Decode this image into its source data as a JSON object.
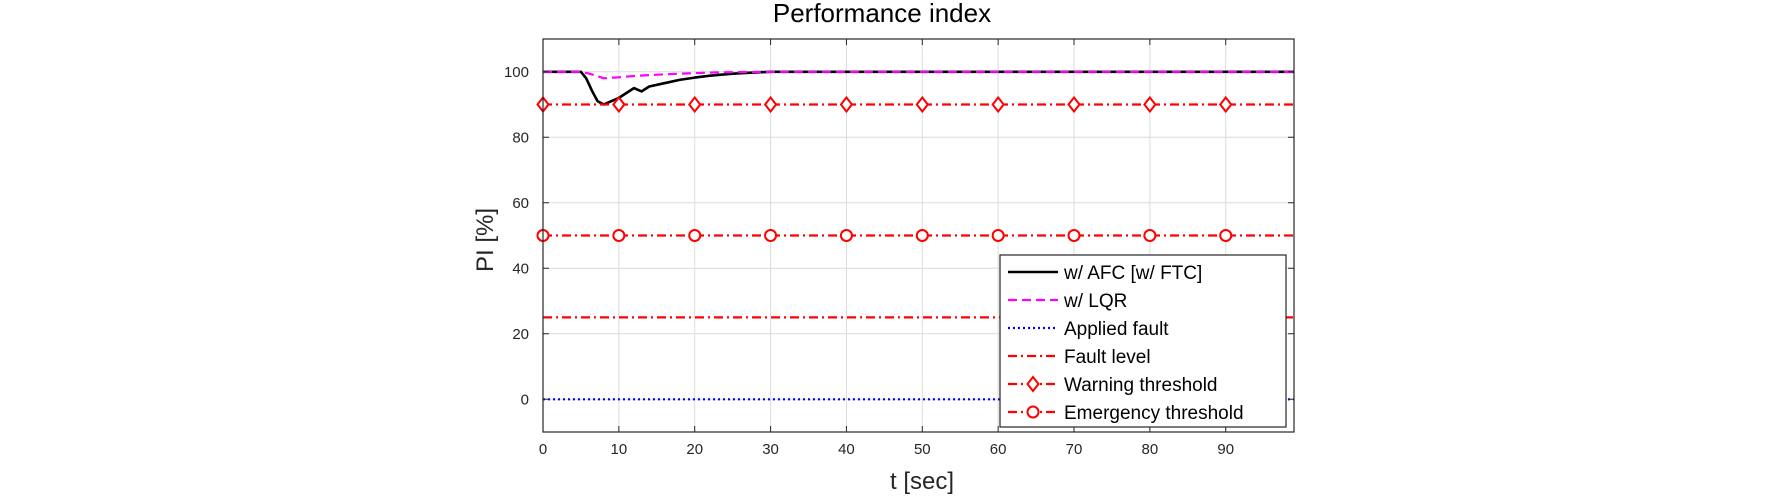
{
  "chart_data": {
    "type": "line",
    "title": "Performance index",
    "xlabel": "t [sec]",
    "ylabel": "PI [%]",
    "xlim": [
      0,
      99
    ],
    "ylim": [
      -10,
      110
    ],
    "xticks": [
      0,
      10,
      20,
      30,
      40,
      50,
      60,
      70,
      80,
      90
    ],
    "yticks": [
      0,
      20,
      40,
      60,
      80,
      100
    ],
    "grid": true,
    "legend_position": "bottom-right",
    "series": [
      {
        "name": "w/ AFC [w/ FTC]",
        "color": "#000000",
        "style": "solid",
        "marker": "none",
        "x": [
          0,
          5,
          5.7,
          6.5,
          7.2,
          8,
          9,
          10,
          11,
          12,
          13,
          14,
          16,
          18,
          20,
          22,
          25,
          28,
          30,
          35,
          40,
          99
        ],
        "y": [
          100,
          100,
          98,
          94,
          91,
          90,
          91,
          92,
          93.5,
          95,
          94,
          95.5,
          96.5,
          97.5,
          98.2,
          98.8,
          99.4,
          99.8,
          100,
          100,
          100,
          100
        ]
      },
      {
        "name": "w/ LQR",
        "color": "#ff00ff",
        "style": "dashed",
        "marker": "none",
        "x": [
          0,
          5,
          6,
          7,
          8,
          10,
          12,
          15,
          18,
          20,
          23,
          26,
          30,
          99
        ],
        "y": [
          100,
          100,
          99.5,
          98.8,
          98,
          98.3,
          98.7,
          99.1,
          99.4,
          99.6,
          99.8,
          99.9,
          100,
          100
        ]
      },
      {
        "name": "Applied fault",
        "color": "#0000ff",
        "style": "dotted",
        "marker": "none",
        "x": [
          0,
          99
        ],
        "y": [
          0,
          0
        ]
      },
      {
        "name": "Fault level",
        "color": "#ff0000",
        "style": "dashdot",
        "marker": "none",
        "x": [
          0,
          99
        ],
        "y": [
          25,
          25
        ]
      },
      {
        "name": "Warning threshold",
        "color": "#ff0000",
        "style": "dashdot",
        "marker": "diamond",
        "x": [
          0,
          99
        ],
        "y": [
          90,
          90
        ],
        "marker_x": [
          0,
          10,
          20,
          30,
          40,
          50,
          60,
          70,
          80,
          90
        ]
      },
      {
        "name": "Emergency threshold",
        "color": "#ff0000",
        "style": "dashdot",
        "marker": "circle",
        "x": [
          0,
          99
        ],
        "y": [
          50,
          50
        ],
        "marker_x": [
          0,
          10,
          20,
          30,
          40,
          50,
          60,
          70,
          80,
          90
        ]
      }
    ]
  }
}
